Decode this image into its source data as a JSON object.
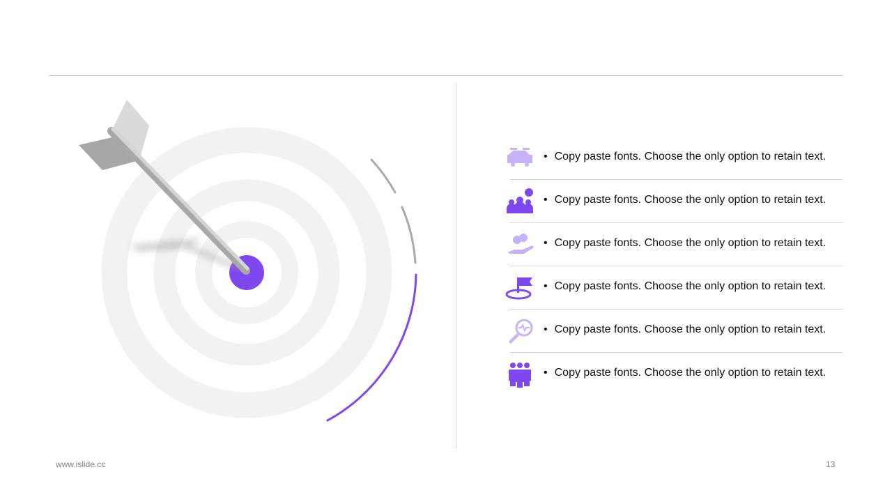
{
  "colors": {
    "accent": "#7f47ef",
    "accent_light": "#c8b2f7",
    "ring": "#f2f2f2",
    "arc_gray": "#aaaaaa"
  },
  "items": [
    {
      "icon": "car-repair-icon",
      "text": "Copy paste fonts. Choose the only option to retain text.",
      "tone": "light"
    },
    {
      "icon": "team-money-icon",
      "text": "Copy paste fonts. Choose the only option to retain text.",
      "tone": "dark"
    },
    {
      "icon": "hand-coins-icon",
      "text": "Copy paste fonts. Choose the only option to retain text.",
      "tone": "light"
    },
    {
      "icon": "flag-target-icon",
      "text": "Copy paste fonts. Choose the only option to retain text.",
      "tone": "dark"
    },
    {
      "icon": "magnifier-pulse-icon",
      "text": "Copy paste fonts. Choose the only option to retain text.",
      "tone": "light"
    },
    {
      "icon": "business-team-icon",
      "text": "Copy paste fonts. Choose the only option to retain text.",
      "tone": "dark"
    }
  ],
  "footer": {
    "website": "www.islide.cc",
    "page_number": "13"
  }
}
